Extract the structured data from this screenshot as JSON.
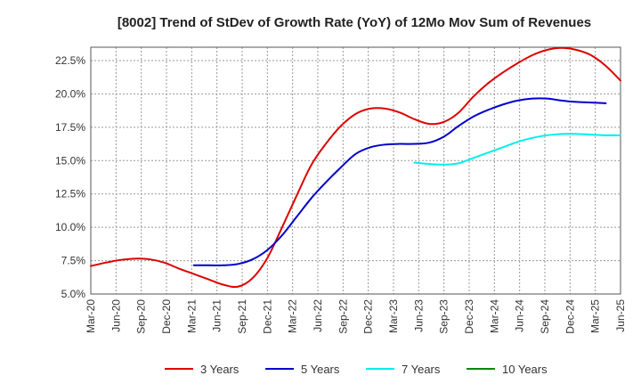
{
  "chart_data": {
    "type": "line",
    "title": "[8002]  Trend of StDev of Growth Rate (YoY) of 12Mo Mov Sum of Revenues",
    "xlabel": "",
    "ylabel": "",
    "ylim": [
      5.0,
      23.5
    ],
    "y_ticks": [
      5.0,
      7.5,
      10.0,
      12.5,
      15.0,
      17.5,
      20.0,
      22.5
    ],
    "y_tick_labels": [
      "5.0%",
      "7.5%",
      "10.0%",
      "12.5%",
      "15.0%",
      "17.5%",
      "20.0%",
      "22.5%"
    ],
    "x_tick_labels": [
      "Mar-20",
      "Jun-20",
      "Sep-20",
      "Dec-20",
      "Mar-21",
      "Jun-21",
      "Sep-21",
      "Dec-21",
      "Mar-22",
      "Jun-22",
      "Sep-22",
      "Dec-22",
      "Mar-23",
      "Jun-23",
      "Sep-23",
      "Dec-23",
      "Mar-24",
      "Jun-24",
      "Sep-24",
      "Dec-24",
      "Mar-25",
      "Jun-25"
    ],
    "grid": true,
    "legend_position": "bottom",
    "series": [
      {
        "name": "3 Years",
        "color": "#dd0000",
        "points": [
          [
            0,
            7.1
          ],
          [
            1,
            7.35
          ],
          [
            2,
            7.55
          ],
          [
            3,
            7.65
          ],
          [
            4,
            7.6
          ],
          [
            5,
            7.35
          ],
          [
            6,
            6.9
          ],
          [
            7,
            6.5
          ],
          [
            8,
            6.1
          ],
          [
            9,
            5.7
          ],
          [
            10,
            5.55
          ],
          [
            11,
            6.2
          ],
          [
            12,
            7.7
          ],
          [
            13,
            10.0
          ],
          [
            14,
            12.4
          ],
          [
            15,
            14.7
          ],
          [
            16,
            16.3
          ],
          [
            17,
            17.6
          ],
          [
            18,
            18.5
          ],
          [
            19,
            18.9
          ],
          [
            20,
            18.9
          ],
          [
            21,
            18.6
          ],
          [
            22,
            18.1
          ],
          [
            23,
            17.75
          ],
          [
            24,
            17.9
          ],
          [
            25,
            18.6
          ],
          [
            26,
            19.8
          ],
          [
            27,
            20.8
          ],
          [
            28,
            21.6
          ],
          [
            29,
            22.3
          ],
          [
            30,
            22.9
          ],
          [
            31,
            23.3
          ],
          [
            32,
            23.45
          ],
          [
            33,
            23.3
          ],
          [
            34,
            22.9
          ],
          [
            35,
            22.1
          ],
          [
            36,
            21.0
          ]
        ]
      },
      {
        "name": "5 Years",
        "color": "#0000cc",
        "points": [
          [
            7,
            7.15
          ],
          [
            8,
            7.15
          ],
          [
            9,
            7.15
          ],
          [
            10,
            7.25
          ],
          [
            11,
            7.6
          ],
          [
            12,
            8.3
          ],
          [
            13,
            9.4
          ],
          [
            14,
            10.8
          ],
          [
            15,
            12.2
          ],
          [
            16,
            13.4
          ],
          [
            17,
            14.5
          ],
          [
            18,
            15.5
          ],
          [
            19,
            16.0
          ],
          [
            20,
            16.2
          ],
          [
            21,
            16.25
          ],
          [
            22,
            16.25
          ],
          [
            23,
            16.35
          ],
          [
            24,
            16.8
          ],
          [
            25,
            17.6
          ],
          [
            26,
            18.3
          ],
          [
            27,
            18.8
          ],
          [
            28,
            19.2
          ],
          [
            29,
            19.5
          ],
          [
            30,
            19.65
          ],
          [
            31,
            19.65
          ],
          [
            32,
            19.5
          ],
          [
            33,
            19.4
          ],
          [
            34,
            19.35
          ],
          [
            35,
            19.3
          ]
        ]
      },
      {
        "name": "7 Years",
        "color": "#00eeee",
        "points": [
          [
            22,
            14.85
          ],
          [
            23,
            14.75
          ],
          [
            24,
            14.7
          ],
          [
            25,
            14.8
          ],
          [
            26,
            15.2
          ],
          [
            27,
            15.6
          ],
          [
            28,
            16.0
          ],
          [
            29,
            16.4
          ],
          [
            30,
            16.7
          ],
          [
            31,
            16.9
          ],
          [
            32,
            17.0
          ],
          [
            33,
            17.0
          ],
          [
            34,
            16.95
          ],
          [
            35,
            16.9
          ],
          [
            36,
            16.9
          ]
        ]
      },
      {
        "name": "10 Years",
        "color": "#008800",
        "points": []
      }
    ]
  }
}
